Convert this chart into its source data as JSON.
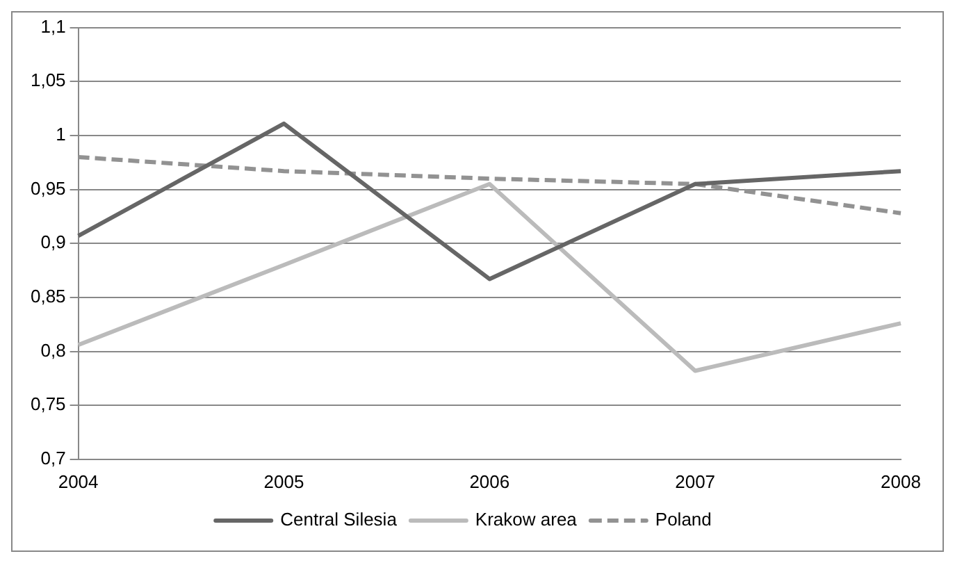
{
  "chart_data": {
    "type": "line",
    "categories": [
      "2004",
      "2005",
      "2006",
      "2007",
      "2008"
    ],
    "series": [
      {
        "name": "Central Silesia",
        "color": "#666666",
        "line_style": "solid",
        "values": [
          0.907,
          1.011,
          0.867,
          0.955,
          0.967
        ]
      },
      {
        "name": "Krakow area",
        "color": "#bbbbbb",
        "line_style": "solid",
        "values": [
          0.806,
          0.88,
          0.955,
          0.782,
          0.826
        ]
      },
      {
        "name": "Poland",
        "color": "#929292",
        "line_style": "dashed",
        "values": [
          0.98,
          0.967,
          0.96,
          0.955,
          0.928
        ]
      }
    ],
    "ylim": [
      0.7,
      1.1
    ],
    "yticks": [
      {
        "value": 0.7,
        "label": "0,7"
      },
      {
        "value": 0.75,
        "label": "0,75"
      },
      {
        "value": 0.8,
        "label": "0,8"
      },
      {
        "value": 0.85,
        "label": "0,85"
      },
      {
        "value": 0.9,
        "label": "0,9"
      },
      {
        "value": 0.95,
        "label": "0,95"
      },
      {
        "value": 1,
        "label": "1"
      },
      {
        "value": 1.05,
        "label": "1,05"
      },
      {
        "value": 1.1,
        "label": "1,1"
      }
    ],
    "grid": "y",
    "legend": "bottom",
    "marker": "none"
  }
}
